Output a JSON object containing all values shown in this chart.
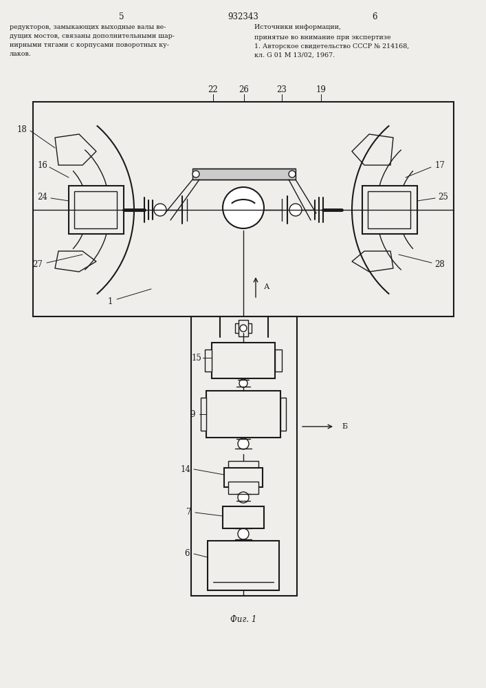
{
  "bg_color": "#f0eeea",
  "line_color": "#1a1a1a",
  "title_number": "932343",
  "page_left": "5",
  "page_right": "6",
  "text_left": "редукторов, замыкающих выходные валы ве-\nдущих мостов, связаны дополнительными шар-\nнирными тягами с корпусами поворотных ку-\nлаков.",
  "text_right_title": "Источники информации,",
  "text_right_body": "принятые во внимание при экспертизе\n1. Авторское свидетельство СССР № 214168,\nкл. G 01 M 13/02, 1967.",
  "fig_label": "Фиг. 1",
  "arrow_label": "А",
  "arrow_b_label": "Б"
}
